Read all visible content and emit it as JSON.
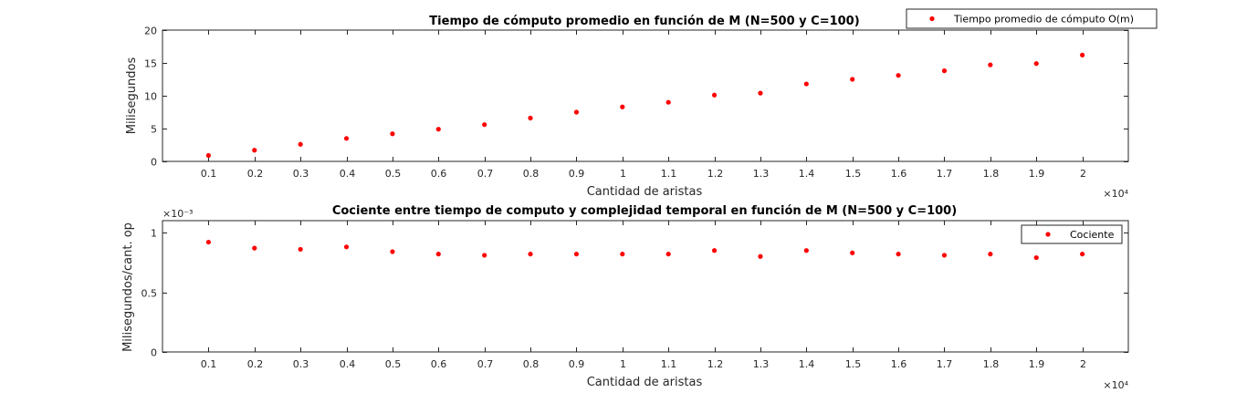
{
  "chart_data": [
    {
      "type": "scatter",
      "title": "Tiempo de cómputo promedio en función de M (N=500 y C=100)",
      "xlabel": "Cantidad de aristas",
      "ylabel": "Milisegundos",
      "x_exponent_label": "×10⁴",
      "y_exponent_label": "",
      "xlim": [
        0,
        21000
      ],
      "ylim": [
        0,
        20
      ],
      "x_ticks": [
        1000,
        2000,
        3000,
        4000,
        5000,
        6000,
        7000,
        8000,
        9000,
        10000,
        11000,
        12000,
        13000,
        14000,
        15000,
        16000,
        17000,
        18000,
        19000,
        20000
      ],
      "x_tick_labels": [
        "0.1",
        "0.2",
        "0.3",
        "0.4",
        "0.5",
        "0.6",
        "0.7",
        "0.8",
        "0.9",
        "1",
        "1.1",
        "1.2",
        "1.3",
        "1.4",
        "1.5",
        "1.6",
        "1.7",
        "1.8",
        "1.9",
        "2"
      ],
      "y_ticks": [
        0,
        5,
        10,
        15,
        20
      ],
      "y_tick_labels": [
        "0",
        "5",
        "10",
        "15",
        "20"
      ],
      "grid": false,
      "legend_position": "top-right",
      "series": [
        {
          "name": "Tiempo promedio de cómputo O(m)",
          "color": "#ff0000",
          "marker": "dot",
          "x": [
            1000,
            2000,
            3000,
            4000,
            5000,
            6000,
            7000,
            8000,
            9000,
            10000,
            11000,
            12000,
            13000,
            14000,
            15000,
            16000,
            17000,
            18000,
            19000,
            20000
          ],
          "y": [
            0.9,
            1.7,
            2.6,
            3.5,
            4.2,
            4.9,
            5.6,
            6.6,
            7.5,
            8.3,
            9.0,
            10.1,
            10.4,
            11.8,
            12.5,
            13.1,
            13.8,
            14.7,
            14.9,
            16.2
          ]
        }
      ]
    },
    {
      "type": "scatter",
      "title": "Cociente entre tiempo de computo y complejidad temporal en función de M (N=500 y C=100)",
      "xlabel": "Cantidad de aristas",
      "ylabel": "Milisegundos/cant. op",
      "x_exponent_label": "×10⁴",
      "y_exponent_label": "×10⁻³",
      "xlim": [
        0,
        21000
      ],
      "ylim": [
        0,
        0.0011
      ],
      "x_ticks": [
        1000,
        2000,
        3000,
        4000,
        5000,
        6000,
        7000,
        8000,
        9000,
        10000,
        11000,
        12000,
        13000,
        14000,
        15000,
        16000,
        17000,
        18000,
        19000,
        20000
      ],
      "x_tick_labels": [
        "0.1",
        "0.2",
        "0.3",
        "0.4",
        "0.5",
        "0.6",
        "0.7",
        "0.8",
        "0.9",
        "1",
        "1.1",
        "1.2",
        "1.3",
        "1.4",
        "1.5",
        "1.6",
        "1.7",
        "1.8",
        "1.9",
        "2"
      ],
      "y_ticks": [
        0,
        0.0005,
        0.001
      ],
      "y_tick_labels": [
        "0",
        "0.5",
        "1"
      ],
      "grid": false,
      "legend_position": "top-right",
      "series": [
        {
          "name": "Cociente",
          "color": "#ff0000",
          "marker": "dot",
          "x": [
            1000,
            2000,
            3000,
            4000,
            5000,
            6000,
            7000,
            8000,
            9000,
            10000,
            11000,
            12000,
            13000,
            14000,
            15000,
            16000,
            17000,
            18000,
            19000,
            20000
          ],
          "y": [
            0.00092,
            0.00087,
            0.00086,
            0.00088,
            0.00084,
            0.00082,
            0.00081,
            0.00082,
            0.00082,
            0.00082,
            0.00082,
            0.00085,
            0.0008,
            0.00085,
            0.00083,
            0.00082,
            0.00081,
            0.00082,
            0.00079,
            0.00082
          ]
        }
      ]
    }
  ]
}
